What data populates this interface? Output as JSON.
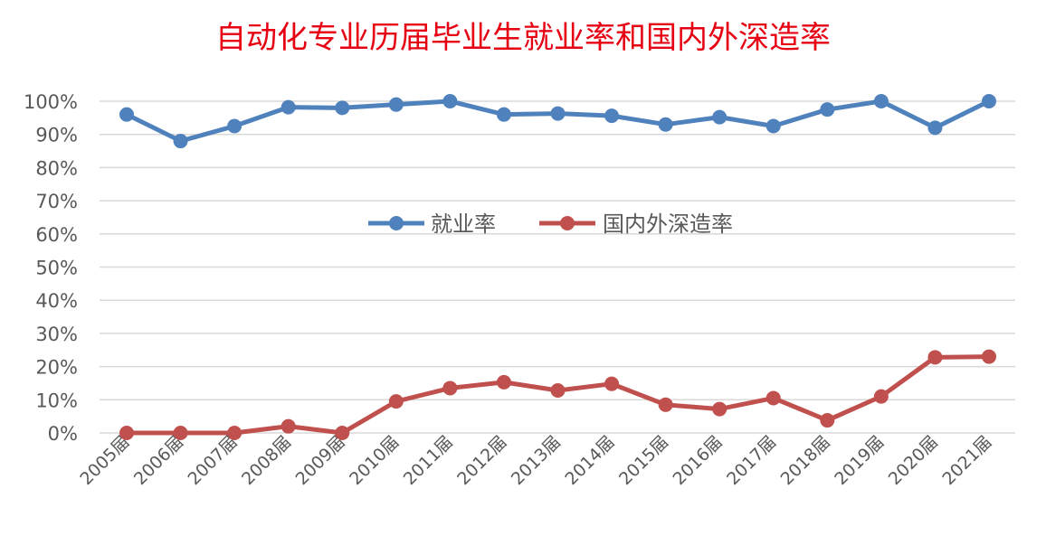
{
  "chart_data": {
    "type": "line",
    "title": "自动化专业历届毕业生就业率和国内外深造率",
    "categories": [
      "2005届",
      "2006届",
      "2007届",
      "2008届",
      "2009届",
      "2010届",
      "2011届",
      "2012届",
      "2013届",
      "2014届",
      "2015届",
      "2016届",
      "2017届",
      "2018届",
      "2019届",
      "2020届",
      "2021届"
    ],
    "series": [
      {
        "name": "就业率",
        "color": "#4f81bd",
        "values": [
          96,
          88,
          92.5,
          98.2,
          98,
          99,
          100,
          96,
          96.3,
          95.6,
          93,
          95.2,
          92.5,
          97.5,
          100,
          92,
          100
        ]
      },
      {
        "name": "国内外深造率",
        "color": "#c0504d",
        "values": [
          0,
          0,
          0,
          2,
          0,
          9.5,
          13.5,
          15.3,
          12.8,
          14.8,
          8.5,
          7.2,
          10.5,
          3.8,
          11,
          22.8,
          23
        ]
      }
    ],
    "yticks": [
      "0%",
      "10%",
      "20%",
      "30%",
      "40%",
      "50%",
      "60%",
      "70%",
      "80%",
      "90%",
      "100%"
    ],
    "ylim": [
      0,
      100
    ],
    "xlabel": "",
    "ylabel": "",
    "grid": true,
    "legend_position": "center",
    "title_color": "#e60012"
  }
}
